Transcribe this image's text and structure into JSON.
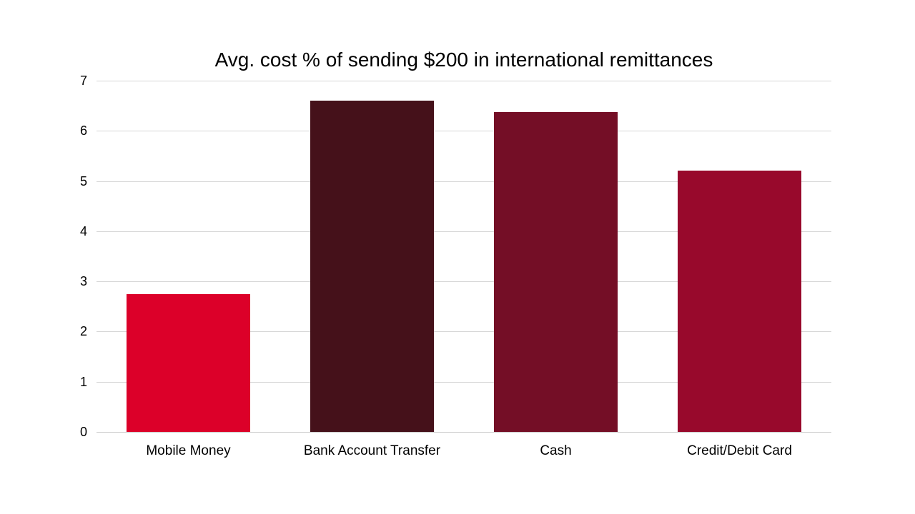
{
  "chart_data": {
    "type": "bar",
    "title": "Avg. cost % of sending $200 in international remittances",
    "categories": [
      "Mobile Money",
      "Bank Account Transfer",
      "Cash",
      "Credit/Debit Card"
    ],
    "values": [
      2.75,
      6.6,
      6.37,
      5.21
    ],
    "bar_colors": [
      "#dc0029",
      "#45111a",
      "#740e26",
      "#98092c"
    ],
    "xlabel": "",
    "ylabel": "",
    "ylim": [
      0,
      7
    ],
    "yticks": [
      0,
      1,
      2,
      3,
      4,
      5,
      6,
      7
    ],
    "grid": "horizontal",
    "legend_position": "none",
    "colors": {
      "background": "#ffffff",
      "gridline": "#d6d6d6",
      "baseline": "#cccccc",
      "text": "#000000"
    }
  }
}
